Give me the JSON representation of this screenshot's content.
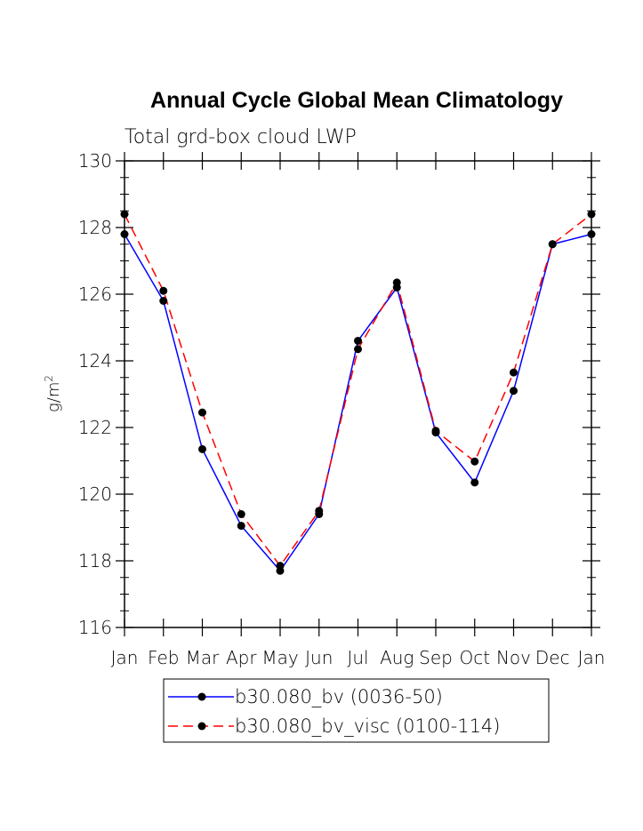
{
  "chart_data": {
    "type": "line",
    "title": "Annual Cycle Global Mean Climatology",
    "subtitle": "Total grd-box cloud LWP",
    "ylabel": "g/m",
    "ylabel_sup": "2",
    "xlabel": "",
    "categories": [
      "Jan",
      "Feb",
      "Mar",
      "Apr",
      "May",
      "Jun",
      "Jul",
      "Aug",
      "Sep",
      "Oct",
      "Nov",
      "Dec",
      "Jan"
    ],
    "ylim": [
      116,
      130
    ],
    "yticks": [
      116,
      118,
      120,
      122,
      124,
      126,
      128,
      130
    ],
    "grid": false,
    "legend_position": "bottom-center",
    "series": [
      {
        "name": "b30.080_bv (0036-50)",
        "color": "#0000ff",
        "dash": "solid",
        "values": [
          127.8,
          125.8,
          121.35,
          119.05,
          117.7,
          119.4,
          124.6,
          126.2,
          121.85,
          120.35,
          123.1,
          127.5,
          127.8
        ]
      },
      {
        "name": "b30.080_bv_visc (0100-114)",
        "color": "#ff0000",
        "dash": "dashed",
        "values": [
          128.4,
          126.1,
          122.45,
          119.4,
          117.85,
          119.5,
          124.35,
          126.35,
          121.9,
          120.98,
          123.65,
          127.5,
          128.4
        ]
      }
    ]
  }
}
